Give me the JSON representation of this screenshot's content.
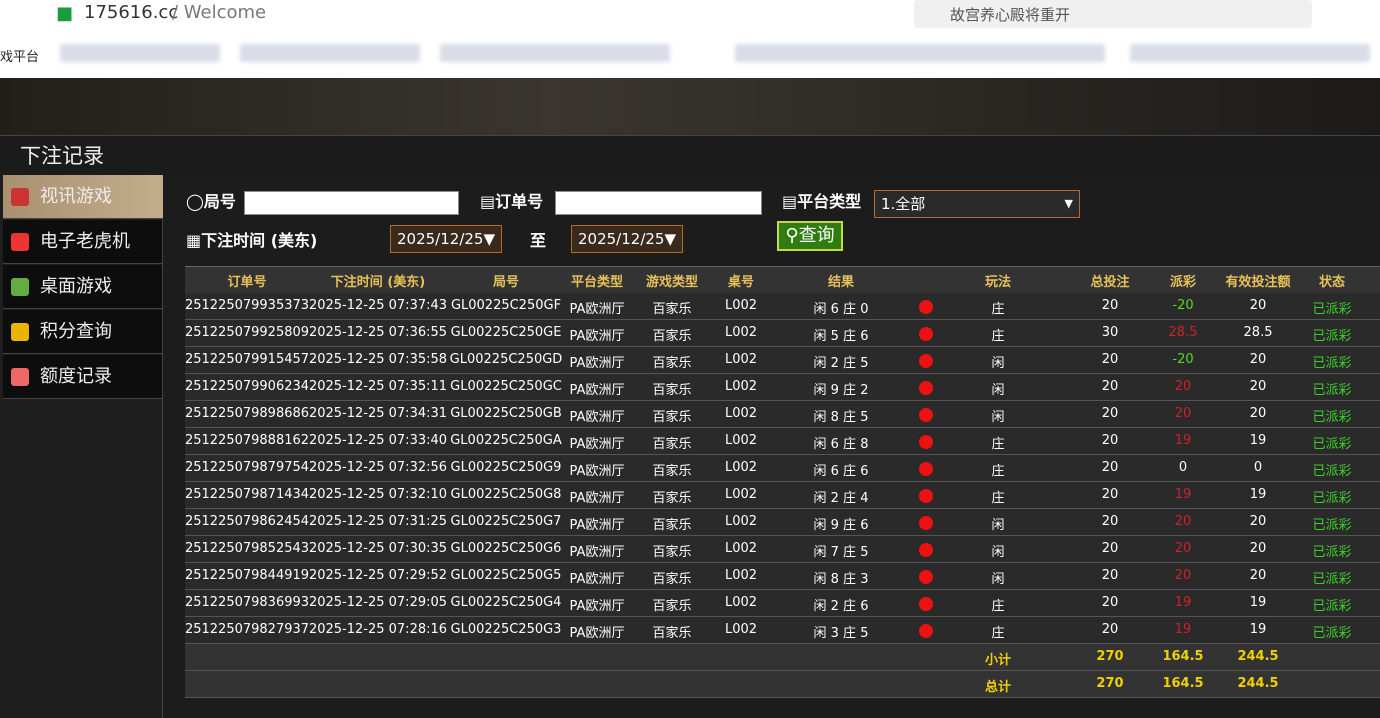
{
  "browser": {
    "url": "175616.cc",
    "url_suffix": "/ Welcome",
    "search": "故宫养心殿将重开",
    "bookmark": "戏平台"
  },
  "panel": {
    "title": "下注记录"
  },
  "sidebar": [
    "视讯游戏",
    "电子老虎机",
    "桌面游戏",
    "积分查询",
    "额度记录"
  ],
  "filters": {
    "round_label": "局号",
    "order_label": "订单号",
    "platform_label": "平台类型",
    "platform_value": "1.全部",
    "time_label": "下注时间 (美东)",
    "date_from": "2025/12/25▼",
    "to": "至",
    "date_to": "2025/12/25▼",
    "button": "查询"
  },
  "table": {
    "headers": [
      "订单号",
      "下注时间 (美东)",
      "局号",
      "平台类型",
      "游戏类型",
      "桌号",
      "结果",
      "玩法",
      "总投注",
      "派彩",
      "有效投注额",
      "状态"
    ],
    "rows": [
      [
        "251225079935373",
        "2025-12-25 07:37:43",
        "GL00225C250GF",
        "PA欧洲厅",
        "百家乐",
        "L002",
        "闲 6 庄 0",
        "庄",
        20,
        -20,
        20,
        "已派彩"
      ],
      [
        "251225079925809",
        "2025-12-25 07:36:55",
        "GL00225C250GE",
        "PA欧洲厅",
        "百家乐",
        "L002",
        "闲 5 庄 6",
        "庄",
        30,
        28.5,
        28.5,
        "已派彩"
      ],
      [
        "251225079915457",
        "2025-12-25 07:35:58",
        "GL00225C250GD",
        "PA欧洲厅",
        "百家乐",
        "L002",
        "闲 2 庄 5",
        "闲",
        20,
        -20,
        20,
        "已派彩"
      ],
      [
        "251225079906234",
        "2025-12-25 07:35:11",
        "GL00225C250GC",
        "PA欧洲厅",
        "百家乐",
        "L002",
        "闲 9 庄 2",
        "闲",
        20,
        20,
        20,
        "已派彩"
      ],
      [
        "251225079898686",
        "2025-12-25 07:34:31",
        "GL00225C250GB",
        "PA欧洲厅",
        "百家乐",
        "L002",
        "闲 8 庄 5",
        "闲",
        20,
        20,
        20,
        "已派彩"
      ],
      [
        "251225079888162",
        "2025-12-25 07:33:40",
        "GL00225C250GA",
        "PA欧洲厅",
        "百家乐",
        "L002",
        "闲 6 庄 8",
        "庄",
        20,
        19,
        19,
        "已派彩"
      ],
      [
        "251225079879754",
        "2025-12-25 07:32:56",
        "GL00225C250G9",
        "PA欧洲厅",
        "百家乐",
        "L002",
        "闲 6 庄 6",
        "庄",
        20,
        0,
        0,
        "已派彩"
      ],
      [
        "251225079871434",
        "2025-12-25 07:32:10",
        "GL00225C250G8",
        "PA欧洲厅",
        "百家乐",
        "L002",
        "闲 2 庄 4",
        "庄",
        20,
        19,
        19,
        "已派彩"
      ],
      [
        "251225079862454",
        "2025-12-25 07:31:25",
        "GL00225C250G7",
        "PA欧洲厅",
        "百家乐",
        "L002",
        "闲 9 庄 6",
        "闲",
        20,
        20,
        20,
        "已派彩"
      ],
      [
        "251225079852543",
        "2025-12-25 07:30:35",
        "GL00225C250G6",
        "PA欧洲厅",
        "百家乐",
        "L002",
        "闲 7 庄 5",
        "闲",
        20,
        20,
        20,
        "已派彩"
      ],
      [
        "251225079844919",
        "2025-12-25 07:29:52",
        "GL00225C250G5",
        "PA欧洲厅",
        "百家乐",
        "L002",
        "闲 8 庄 3",
        "闲",
        20,
        20,
        20,
        "已派彩"
      ],
      [
        "251225079836993",
        "2025-12-25 07:29:05",
        "GL00225C250G4",
        "PA欧洲厅",
        "百家乐",
        "L002",
        "闲 2 庄 6",
        "庄",
        20,
        19,
        19,
        "已派彩"
      ],
      [
        "251225079827937",
        "2025-12-25 07:28:16",
        "GL00225C250G3",
        "PA欧洲厅",
        "百家乐",
        "L002",
        "闲 3 庄 5",
        "庄",
        20,
        19,
        19,
        "已派彩"
      ]
    ],
    "subtotal": [
      "小计",
      270,
      164.5,
      244.5
    ],
    "total": [
      "总计",
      270,
      164.5,
      244.5
    ]
  }
}
